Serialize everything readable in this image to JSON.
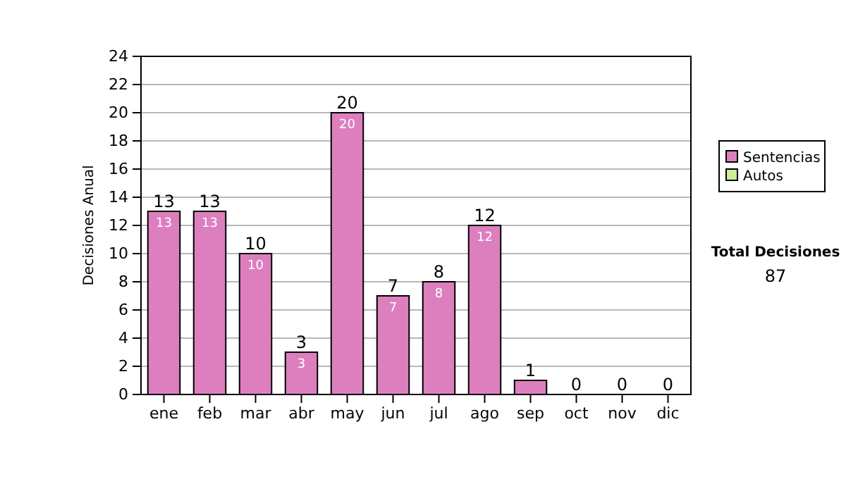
{
  "chart_data": {
    "type": "bar",
    "stacked": true,
    "ylabel": "Decisiones Anual",
    "categories": [
      "ene",
      "feb",
      "mar",
      "abr",
      "may",
      "jun",
      "jul",
      "ago",
      "sep",
      "oct",
      "nov",
      "dic"
    ],
    "series": [
      {
        "name": "Sentencias",
        "color": "#dd7fbf",
        "values": [
          13,
          13,
          10,
          3,
          20,
          7,
          8,
          12,
          1,
          0,
          0,
          0
        ],
        "value_labels": [
          "13",
          "13",
          "10",
          "3",
          "20",
          "7",
          "8",
          "12",
          null,
          null,
          null,
          null
        ]
      },
      {
        "name": "Autos",
        "color": "#ccee99",
        "values": [
          0,
          0,
          0,
          0,
          0,
          0,
          0,
          0,
          0,
          0,
          0,
          0
        ]
      }
    ],
    "totals": [
      "13",
      "13",
      "10",
      "3",
      "20",
      "7",
      "8",
      "12",
      "1",
      "0",
      "0",
      "0"
    ],
    "ylim": [
      0,
      24
    ],
    "yticks": [
      0,
      2,
      4,
      6,
      8,
      10,
      12,
      14,
      16,
      18,
      20,
      22,
      24
    ],
    "grid": "y",
    "legend": "right",
    "annotations": [
      "Total Decisiones",
      "87"
    ]
  }
}
